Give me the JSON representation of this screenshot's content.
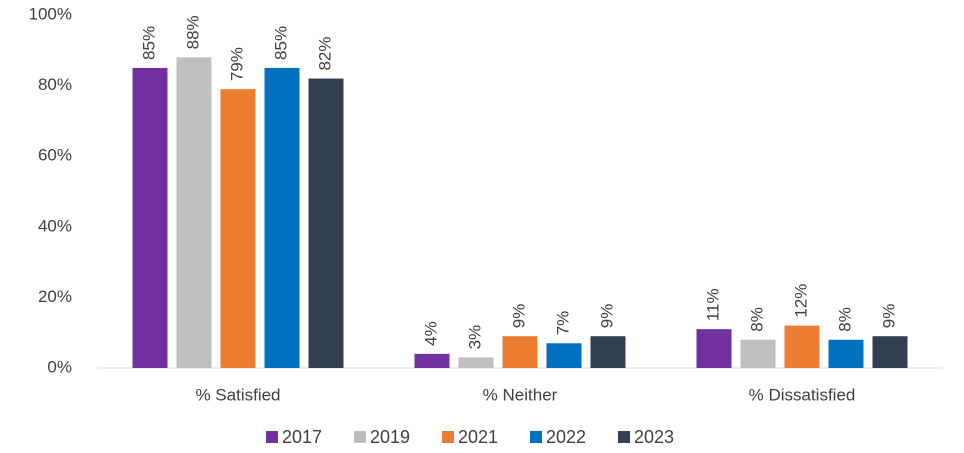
{
  "chart_data": {
    "type": "bar",
    "categories": [
      "% Satisfied",
      "% Neither",
      "% Dissatisfied"
    ],
    "series": [
      {
        "name": "2017",
        "color": "#7030a0",
        "values": [
          85,
          4,
          11
        ],
        "value_labels": [
          "85%",
          "4%",
          "11%"
        ]
      },
      {
        "name": "2019",
        "color": "#bfbfbf",
        "values": [
          88,
          3,
          8
        ],
        "value_labels": [
          "88%",
          "3%",
          "8%"
        ]
      },
      {
        "name": "2021",
        "color": "#ed7d31",
        "values": [
          79,
          9,
          12
        ],
        "value_labels": [
          "79%",
          "9%",
          "12%"
        ]
      },
      {
        "name": "2022",
        "color": "#0070c0",
        "values": [
          85,
          7,
          8
        ],
        "value_labels": [
          "85%",
          "7%",
          "8%"
        ]
      },
      {
        "name": "2023",
        "color": "#333f4f",
        "values": [
          82,
          9,
          9
        ],
        "value_labels": [
          "82%",
          "9%",
          "9%"
        ]
      }
    ],
    "ylim": [
      0,
      100
    ],
    "yticks": [
      {
        "value": 0,
        "label": "0%"
      },
      {
        "value": 20,
        "label": "20%"
      },
      {
        "value": 40,
        "label": "40%"
      },
      {
        "value": 60,
        "label": "60%"
      },
      {
        "value": 80,
        "label": "80%"
      },
      {
        "value": 100,
        "label": "100%"
      }
    ],
    "grid": false,
    "legend": "bottom"
  }
}
